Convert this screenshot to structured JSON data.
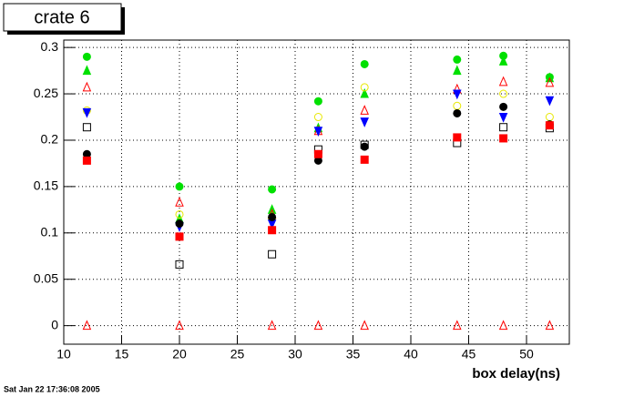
{
  "chart_data": {
    "type": "scatter",
    "title": "crate 6",
    "x_label": "box delay(ns)",
    "footer": "Sat Jan 22 17:36:08 2005",
    "x": [
      12,
      20,
      28,
      32,
      36,
      44,
      48,
      52
    ],
    "xlim": [
      10,
      53.7
    ],
    "ylim": [
      -0.02,
      0.308
    ],
    "xticks": [
      10,
      15,
      20,
      25,
      30,
      35,
      40,
      45,
      50
    ],
    "yticks": [
      0,
      0.05,
      0.1,
      0.15,
      0.2,
      0.25,
      0.3
    ],
    "grid": true,
    "series": [
      {
        "color": "#00e000",
        "marker": "circle",
        "filled": true,
        "values": [
          0.29,
          0.15,
          0.147,
          0.242,
          0.282,
          0.287,
          0.291,
          0.268
        ]
      },
      {
        "color": "#00e000",
        "marker": "triangle",
        "filled": true,
        "values": [
          0.275,
          0.115,
          0.125,
          0.213,
          0.25,
          0.275,
          0.285,
          0.267
        ]
      },
      {
        "color": "#ff0000",
        "marker": "triangle",
        "filled": false,
        "values": [
          0.257,
          0.133,
          0.12,
          0.21,
          0.232,
          0.255,
          0.263,
          0.262
        ]
      },
      {
        "color": "#e8e800",
        "marker": "circle",
        "filled": false,
        "values": [
          0.232,
          0.12,
          0.115,
          0.225,
          0.257,
          0.237,
          0.25,
          0.225
        ]
      },
      {
        "color": "#0000ff",
        "marker": "down-triangle",
        "filled": true,
        "values": [
          0.23,
          0.107,
          0.11,
          0.21,
          0.22,
          0.25,
          0.225,
          0.243
        ]
      },
      {
        "color": "#000000",
        "marker": "square",
        "filled": false,
        "values": [
          0.214,
          0.066,
          0.077,
          0.19,
          0.195,
          0.197,
          0.214,
          0.213
        ]
      },
      {
        "color": "#000000",
        "marker": "circle",
        "filled": true,
        "values": [
          0.185,
          0.11,
          0.117,
          0.178,
          0.193,
          0.229,
          0.236,
          0.217
        ]
      },
      {
        "color": "#ff0000",
        "marker": "square",
        "filled": true,
        "values": [
          0.178,
          0.096,
          0.103,
          0.185,
          0.179,
          0.203,
          0.202,
          0.216
        ]
      },
      {
        "color": "#ff0000",
        "marker": "triangle",
        "filled": false,
        "values": [
          0,
          0,
          0,
          0,
          0,
          0,
          0,
          0
        ]
      }
    ]
  }
}
